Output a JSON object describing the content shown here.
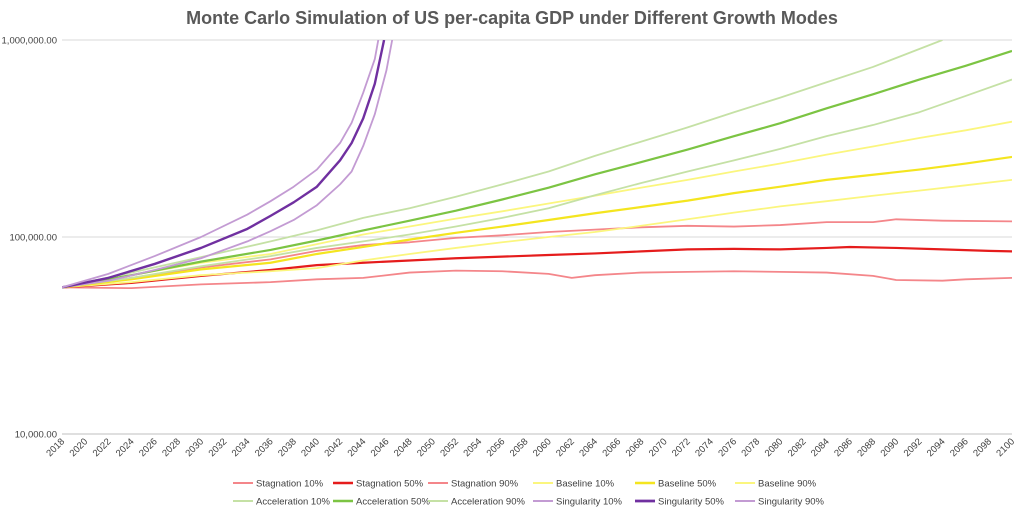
{
  "chart_data": {
    "type": "line",
    "title": "Monte Carlo Simulation of US per-capita GDP under Different Growth Modes",
    "xlabel": "",
    "ylabel": "",
    "y_scale": "log",
    "ylim": [
      10000,
      1000000
    ],
    "xlim": [
      2018,
      2100
    ],
    "grid": "horizontal",
    "legend_position": "bottom",
    "y_tick_labels": [
      "10,000.00",
      "100,000.00",
      "1,000,000.00"
    ],
    "y_ticks": [
      10000,
      100000,
      1000000
    ],
    "x_tick_labels": [
      "2018",
      "2020",
      "2022",
      "2024",
      "2026",
      "2028",
      "2030",
      "2032",
      "2034",
      "2036",
      "2038",
      "2040",
      "2042",
      "2044",
      "2046",
      "2048",
      "2050",
      "2052",
      "2054",
      "2056",
      "2058",
      "2060",
      "2062",
      "2064",
      "2066",
      "2068",
      "2070",
      "2072",
      "2074",
      "2076",
      "2078",
      "2080",
      "2082",
      "2084",
      "2086",
      "2088",
      "2090",
      "2092",
      "2094",
      "2096",
      "2098",
      "2100"
    ],
    "x_ticks": [
      2018,
      2020,
      2022,
      2024,
      2026,
      2028,
      2030,
      2032,
      2034,
      2036,
      2038,
      2040,
      2042,
      2044,
      2046,
      2048,
      2050,
      2052,
      2054,
      2056,
      2058,
      2060,
      2062,
      2064,
      2066,
      2068,
      2070,
      2072,
      2074,
      2076,
      2078,
      2080,
      2082,
      2084,
      2086,
      2088,
      2090,
      2092,
      2094,
      2096,
      2098,
      2100
    ],
    "series": [
      {
        "name": "Stagnation 10%",
        "color": "#f4868a",
        "width": 1.8,
        "points": [
          [
            2018,
            55500
          ],
          [
            2024,
            55000
          ],
          [
            2030,
            57500
          ],
          [
            2036,
            59000
          ],
          [
            2040,
            61000
          ],
          [
            2044,
            62000
          ],
          [
            2048,
            66000
          ],
          [
            2052,
            67500
          ],
          [
            2056,
            67000
          ],
          [
            2060,
            65000
          ],
          [
            2062,
            62000
          ],
          [
            2064,
            64000
          ],
          [
            2068,
            66000
          ],
          [
            2072,
            66500
          ],
          [
            2076,
            67000
          ],
          [
            2080,
            66500
          ],
          [
            2084,
            66000
          ],
          [
            2088,
            63500
          ],
          [
            2090,
            60500
          ],
          [
            2094,
            60000
          ],
          [
            2096,
            61000
          ],
          [
            2100,
            62000
          ]
        ]
      },
      {
        "name": "Stagnation 50%",
        "color": "#e51c1c",
        "width": 2.2,
        "points": [
          [
            2018,
            55500
          ],
          [
            2024,
            58500
          ],
          [
            2030,
            63500
          ],
          [
            2036,
            68000
          ],
          [
            2040,
            72000
          ],
          [
            2044,
            74000
          ],
          [
            2048,
            76000
          ],
          [
            2052,
            78000
          ],
          [
            2056,
            79500
          ],
          [
            2060,
            81000
          ],
          [
            2064,
            82500
          ],
          [
            2068,
            84500
          ],
          [
            2072,
            86500
          ],
          [
            2076,
            87000
          ],
          [
            2080,
            86500
          ],
          [
            2084,
            88000
          ],
          [
            2086,
            89000
          ],
          [
            2090,
            88000
          ],
          [
            2094,
            86500
          ],
          [
            2098,
            85000
          ],
          [
            2100,
            84500
          ]
        ]
      },
      {
        "name": "Stagnation 90%",
        "color": "#f4868a",
        "width": 1.8,
        "points": [
          [
            2018,
            55500
          ],
          [
            2024,
            62000
          ],
          [
            2030,
            70000
          ],
          [
            2036,
            77000
          ],
          [
            2040,
            85000
          ],
          [
            2044,
            91000
          ],
          [
            2048,
            94000
          ],
          [
            2052,
            99000
          ],
          [
            2056,
            102000
          ],
          [
            2060,
            106000
          ],
          [
            2064,
            109000
          ],
          [
            2068,
            112000
          ],
          [
            2072,
            114000
          ],
          [
            2076,
            113000
          ],
          [
            2080,
            115000
          ],
          [
            2084,
            119000
          ],
          [
            2088,
            119000
          ],
          [
            2090,
            123000
          ],
          [
            2094,
            121000
          ],
          [
            2100,
            120000
          ]
        ]
      },
      {
        "name": "Baseline 10%",
        "color": "#fbf67e",
        "width": 1.8,
        "points": [
          [
            2018,
            55500
          ],
          [
            2024,
            59000
          ],
          [
            2030,
            64000
          ],
          [
            2036,
            67000
          ],
          [
            2040,
            69500
          ],
          [
            2044,
            76000
          ],
          [
            2048,
            82000
          ],
          [
            2052,
            88000
          ],
          [
            2056,
            94000
          ],
          [
            2060,
            100000
          ],
          [
            2064,
            106000
          ],
          [
            2068,
            114000
          ],
          [
            2072,
            123000
          ],
          [
            2076,
            133000
          ],
          [
            2080,
            143000
          ],
          [
            2084,
            152000
          ],
          [
            2088,
            162000
          ],
          [
            2092,
            172000
          ],
          [
            2096,
            183000
          ],
          [
            2100,
            195000
          ]
        ]
      },
      {
        "name": "Baseline 50%",
        "color": "#f4e51f",
        "width": 2.2,
        "points": [
          [
            2018,
            55500
          ],
          [
            2024,
            61000
          ],
          [
            2030,
            68500
          ],
          [
            2036,
            74000
          ],
          [
            2040,
            82000
          ],
          [
            2044,
            89000
          ],
          [
            2048,
            97000
          ],
          [
            2052,
            105000
          ],
          [
            2056,
            113000
          ],
          [
            2060,
            122000
          ],
          [
            2064,
            132000
          ],
          [
            2068,
            142000
          ],
          [
            2072,
            153000
          ],
          [
            2076,
            167000
          ],
          [
            2080,
            180000
          ],
          [
            2084,
            195000
          ],
          [
            2088,
            207000
          ],
          [
            2092,
            220000
          ],
          [
            2096,
            236000
          ],
          [
            2100,
            255000
          ]
        ]
      },
      {
        "name": "Baseline 90%",
        "color": "#fbf67e",
        "width": 1.8,
        "points": [
          [
            2018,
            55500
          ],
          [
            2024,
            64000
          ],
          [
            2030,
            74000
          ],
          [
            2036,
            82000
          ],
          [
            2040,
            92000
          ],
          [
            2044,
            103000
          ],
          [
            2048,
            113000
          ],
          [
            2052,
            124000
          ],
          [
            2056,
            135000
          ],
          [
            2060,
            148000
          ],
          [
            2064,
            162000
          ],
          [
            2068,
            178000
          ],
          [
            2072,
            195000
          ],
          [
            2076,
            215000
          ],
          [
            2080,
            236000
          ],
          [
            2084,
            262000
          ],
          [
            2088,
            288000
          ],
          [
            2092,
            318000
          ],
          [
            2096,
            348000
          ],
          [
            2100,
            385000
          ]
        ]
      },
      {
        "name": "Acceleration 10%",
        "color": "#c5e1a5",
        "width": 1.8,
        "points": [
          [
            2018,
            55500
          ],
          [
            2024,
            62000
          ],
          [
            2030,
            71000
          ],
          [
            2036,
            80000
          ],
          [
            2040,
            88000
          ],
          [
            2044,
            95000
          ],
          [
            2048,
            103000
          ],
          [
            2052,
            113000
          ],
          [
            2056,
            125000
          ],
          [
            2060,
            140000
          ],
          [
            2064,
            163000
          ],
          [
            2068,
            188000
          ],
          [
            2072,
            215000
          ],
          [
            2076,
            245000
          ],
          [
            2080,
            280000
          ],
          [
            2084,
            325000
          ],
          [
            2088,
            370000
          ],
          [
            2092,
            430000
          ],
          [
            2096,
            520000
          ],
          [
            2100,
            630000
          ]
        ]
      },
      {
        "name": "Acceleration 50%",
        "color": "#7cc443",
        "width": 2.2,
        "points": [
          [
            2018,
            55500
          ],
          [
            2024,
            64000
          ],
          [
            2030,
            75000
          ],
          [
            2036,
            86000
          ],
          [
            2040,
            96000
          ],
          [
            2044,
            108000
          ],
          [
            2048,
            121000
          ],
          [
            2052,
            136000
          ],
          [
            2056,
            155000
          ],
          [
            2060,
            178000
          ],
          [
            2064,
            208000
          ],
          [
            2068,
            240000
          ],
          [
            2072,
            278000
          ],
          [
            2076,
            325000
          ],
          [
            2080,
            378000
          ],
          [
            2084,
            450000
          ],
          [
            2088,
            530000
          ],
          [
            2092,
            630000
          ],
          [
            2096,
            740000
          ],
          [
            2100,
            880000
          ]
        ]
      },
      {
        "name": "Acceleration 90%",
        "color": "#c5e1a5",
        "width": 1.8,
        "points": [
          [
            2018,
            55500
          ],
          [
            2024,
            66000
          ],
          [
            2030,
            79000
          ],
          [
            2036,
            95000
          ],
          [
            2040,
            108000
          ],
          [
            2044,
            125000
          ],
          [
            2048,
            140000
          ],
          [
            2052,
            160000
          ],
          [
            2056,
            185000
          ],
          [
            2060,
            215000
          ],
          [
            2064,
            258000
          ],
          [
            2068,
            305000
          ],
          [
            2072,
            360000
          ],
          [
            2076,
            430000
          ],
          [
            2080,
            510000
          ],
          [
            2084,
            610000
          ],
          [
            2088,
            730000
          ],
          [
            2092,
            900000
          ],
          [
            2094,
            1000000
          ]
        ]
      },
      {
        "name": "Singularity 10%",
        "color": "#c39bd3",
        "width": 1.8,
        "points": [
          [
            2018,
            55500
          ],
          [
            2022,
            60000
          ],
          [
            2026,
            68000
          ],
          [
            2030,
            78000
          ],
          [
            2034,
            95000
          ],
          [
            2036,
            107000
          ],
          [
            2038,
            122000
          ],
          [
            2040,
            145000
          ],
          [
            2042,
            185000
          ],
          [
            2043,
            215000
          ],
          [
            2044,
            290000
          ],
          [
            2045,
            420000
          ],
          [
            2046,
            700000
          ],
          [
            2046.5,
            1000000
          ]
        ]
      },
      {
        "name": "Singularity 50%",
        "color": "#7030a0",
        "width": 2.4,
        "points": [
          [
            2018,
            55500
          ],
          [
            2022,
            62000
          ],
          [
            2026,
            73000
          ],
          [
            2030,
            88000
          ],
          [
            2034,
            110000
          ],
          [
            2036,
            128000
          ],
          [
            2038,
            150000
          ],
          [
            2040,
            180000
          ],
          [
            2042,
            245000
          ],
          [
            2043,
            300000
          ],
          [
            2044,
            400000
          ],
          [
            2045,
            600000
          ],
          [
            2045.8,
            1000000
          ]
        ]
      },
      {
        "name": "Singularity 90%",
        "color": "#c39bd3",
        "width": 1.8,
        "points": [
          [
            2018,
            55500
          ],
          [
            2022,
            65000
          ],
          [
            2026,
            80000
          ],
          [
            2030,
            100000
          ],
          [
            2034,
            130000
          ],
          [
            2036,
            152000
          ],
          [
            2038,
            180000
          ],
          [
            2040,
            220000
          ],
          [
            2042,
            300000
          ],
          [
            2043,
            380000
          ],
          [
            2044,
            540000
          ],
          [
            2045,
            800000
          ],
          [
            2045.3,
            1000000
          ]
        ]
      }
    ]
  }
}
